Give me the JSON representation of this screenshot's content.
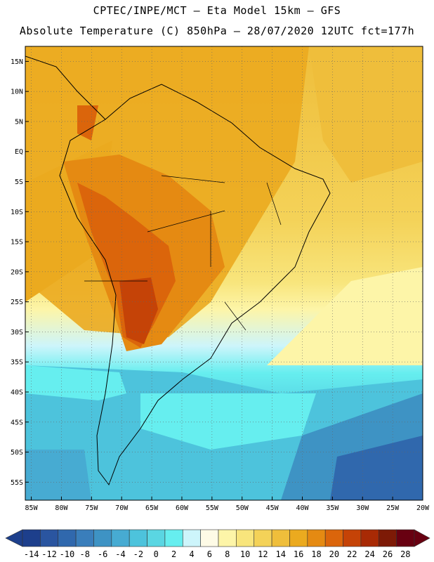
{
  "header": {
    "line1": "CPTEC/INPE/MCT –  Eta Model 15km – GFS",
    "line2": "Absolute Temperature (C) 850hPa – 28/07/2020 12UTC fct=177h"
  },
  "map": {
    "lat_labels": [
      "15N",
      "10N",
      "5N",
      "EQ",
      "5S",
      "10S",
      "15S",
      "20S",
      "25S",
      "30S",
      "35S",
      "40S",
      "45S",
      "50S",
      "55S"
    ],
    "lon_labels": [
      "85W",
      "80W",
      "75W",
      "70W",
      "65W",
      "60W",
      "55W",
      "50W",
      "45W",
      "40W",
      "35W",
      "30W",
      "25W",
      "20W"
    ],
    "lat_range": [
      17.5,
      -58
    ],
    "lon_range": [
      -86,
      -20
    ]
  },
  "colorbar": {
    "labels": [
      "-14",
      "-12",
      "-10",
      "-8",
      "-6",
      "-4",
      "-2",
      "0",
      "2",
      "4",
      "6",
      "8",
      "10",
      "12",
      "14",
      "16",
      "18",
      "20",
      "22",
      "24",
      "26",
      "28"
    ],
    "colors": [
      "#1d3f8c",
      "#2a55a0",
      "#3068ad",
      "#3a7ebb",
      "#3e93c4",
      "#47abd2",
      "#4dc3dc",
      "#5ad6e2",
      "#66eeef",
      "#cdf5fb",
      "#fefbe6",
      "#fdf5a8",
      "#f8e57c",
      "#f4d258",
      "#efbe3b",
      "#ebaa1f",
      "#e58a12",
      "#db650b",
      "#c54307",
      "#a82a05",
      "#7d1a06",
      "#680011"
    ]
  }
}
